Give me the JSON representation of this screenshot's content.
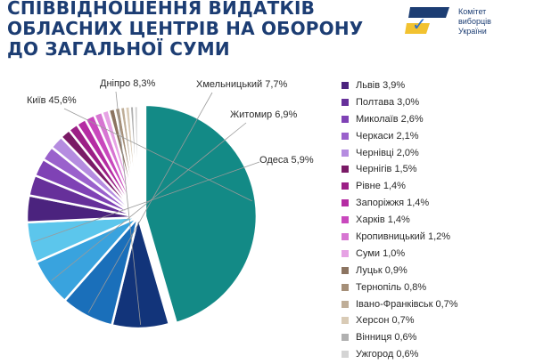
{
  "title_lines": [
    "СПІВВІДНОШЕННЯ ВИДАТКІВ",
    "ОБЛАСНИХ ЦЕНТРІВ НА ОБОРОНУ",
    "ДО ЗАГАЛЬНОЇ СУМИ"
  ],
  "logo": {
    "lines": [
      "Комітет",
      "виборців",
      "України"
    ],
    "icon_name": "kvu-logo-icon",
    "colors": [
      "#1c3d73",
      "#f2c230",
      "#2d6fc7"
    ]
  },
  "chart_data": {
    "type": "pie",
    "title": "СПІВВІДНОШЕННЯ ВИДАТКІВ ОБЛАСНИХ ЦЕНТРІВ НА ОБОРОНУ ДО ЗАГАЛЬНОЇ СУМИ",
    "unit": "%",
    "slices": [
      {
        "name": "Київ",
        "value": 45.6,
        "label": "Київ 45,6%",
        "color": "#138a86",
        "exploded": true
      },
      {
        "name": "Дніпро",
        "value": 8.3,
        "label": "Дніпро 8,3%",
        "color": "#12347a"
      },
      {
        "name": "Хмельницький",
        "value": 7.7,
        "label": "Хмельницький 7,7%",
        "color": "#1a6fba"
      },
      {
        "name": "Житомир",
        "value": 6.9,
        "label": "Житомир 6,9%",
        "color": "#39a3de"
      },
      {
        "name": "Одеса",
        "value": 5.9,
        "label": "Одеса 5,9%",
        "color": "#5cc6ec"
      },
      {
        "name": "Львів",
        "value": 3.9,
        "label": "Львів 3,9%",
        "color": "#4b237e"
      },
      {
        "name": "Полтава",
        "value": 3.0,
        "label": "Полтава 3,0%",
        "color": "#66309a"
      },
      {
        "name": "Миколаїв",
        "value": 2.6,
        "label": "Миколаїв 2,6%",
        "color": "#7f42b5"
      },
      {
        "name": "Черкаси",
        "value": 2.1,
        "label": "Черкаси 2,1%",
        "color": "#9a61cc"
      },
      {
        "name": "Чернівці",
        "value": 2.0,
        "label": "Чернівці 2,0%",
        "color": "#b58ce0"
      },
      {
        "name": "Чернігів",
        "value": 1.5,
        "label": "Чернігів 1,5%",
        "color": "#7a1a66"
      },
      {
        "name": "Рівне",
        "value": 1.4,
        "label": "Рівне 1,4%",
        "color": "#9c1f86"
      },
      {
        "name": "Запоріжжя",
        "value": 1.4,
        "label": "Запоріжжя 1,4%",
        "color": "#b52ca3"
      },
      {
        "name": "Харків",
        "value": 1.4,
        "label": "Харків 1,4%",
        "color": "#c948bd"
      },
      {
        "name": "Кропивницький",
        "value": 1.2,
        "label": "Кропивницький 1,2%",
        "color": "#d775d2"
      },
      {
        "name": "Суми",
        "value": 1.0,
        "label": "Суми 1,0%",
        "color": "#e6a2e4"
      },
      {
        "name": "Луцьк",
        "value": 0.9,
        "label": "Луцьк 0,9%",
        "color": "#8c7461"
      },
      {
        "name": "Тернопіль",
        "value": 0.8,
        "label": "Тернопіль 0,8%",
        "color": "#a58f78"
      },
      {
        "name": "Івано-Франківськ",
        "value": 0.7,
        "label": "Івано-Франківськ 0,7%",
        "color": "#bfae98"
      },
      {
        "name": "Херсон",
        "value": 0.7,
        "label": "Херсон 0,7%",
        "color": "#d9cbb6"
      },
      {
        "name": "Вінниця",
        "value": 0.6,
        "label": "Вінниця 0,6%",
        "color": "#b0b0b0"
      },
      {
        "name": "Ужгород",
        "value": 0.6,
        "label": "Ужгород 0,6%",
        "color": "#d4d4d4"
      }
    ],
    "pie_labels": [
      "Київ",
      "Дніпро",
      "Хмельницький",
      "Житомир",
      "Одеса"
    ],
    "legend_items": [
      "Львів",
      "Полтава",
      "Миколаїв",
      "Черкаси",
      "Чернівці",
      "Чернігів",
      "Рівне",
      "Запоріжжя",
      "Харків",
      "Кропивницький",
      "Суми",
      "Луцьк",
      "Тернопіль",
      "Івано-Франківськ",
      "Херсон",
      "Вінниця",
      "Ужгород"
    ],
    "legend_placement": "right"
  }
}
